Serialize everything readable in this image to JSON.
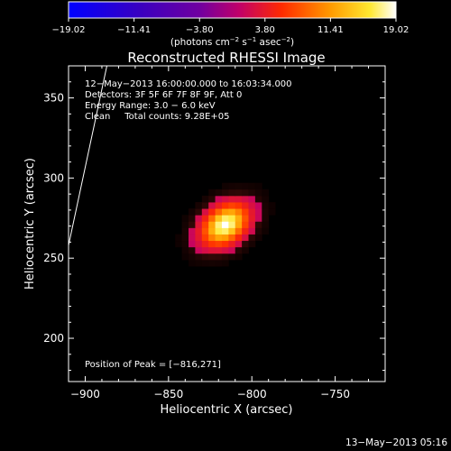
{
  "chart_data": {
    "type": "heatmap",
    "title": "Reconstructed RHESSI Image",
    "xlabel": "Heliocentric X (arcsec)",
    "ylabel": "Heliocentric Y (arcsec)",
    "xlim": [
      -910,
      -720
    ],
    "ylim": [
      173,
      370
    ],
    "x_ticks": [
      {
        "value": -900,
        "label": "−900"
      },
      {
        "value": -850,
        "label": "−850"
      },
      {
        "value": -800,
        "label": "−800"
      },
      {
        "value": -750,
        "label": "−750"
      }
    ],
    "y_ticks": [
      {
        "value": 200,
        "label": "200"
      },
      {
        "value": 250,
        "label": "250"
      },
      {
        "value": 300,
        "label": "300"
      },
      {
        "value": 350,
        "label": "350"
      }
    ],
    "colorbar": {
      "range": [
        -19.02,
        19.02
      ],
      "ticks": [
        {
          "value": -19.02,
          "label": "−19.02"
        },
        {
          "value": -11.41,
          "label": "−11.41"
        },
        {
          "value": -3.8,
          "label": "−3.80"
        },
        {
          "value": 3.8,
          "label": "3.80"
        },
        {
          "value": 11.41,
          "label": "11.41"
        },
        {
          "value": 19.02,
          "label": "19.02"
        }
      ],
      "label_prefix": "(photons cm",
      "label_exp1": "−2",
      "label_mid": " s",
      "label_exp2": "−1",
      "label_mid2": " asec",
      "label_exp3": "−2",
      "label_suffix": ")"
    },
    "annotations": [
      "12−May−2013 16:00:00.000 to 16:03:34.000",
      "Detectors: 3F 5F 6F 7F 8F 9F, Att 0",
      "Energy Range: 3.0 − 6.0 keV",
      "Clean     Total counts: 9.28E+05"
    ],
    "peak_label": "Position of Peak = [−816,271]",
    "peak": {
      "x": -816,
      "y": 271,
      "value": 19.02
    },
    "source": {
      "sigma_major": 10,
      "sigma_minor": 7,
      "angle_deg": 40
    },
    "limb_line": [
      [
        -910,
        258
      ],
      [
        -887,
        370
      ]
    ],
    "colors": {
      "background": "#000000",
      "line": "#ffffff"
    }
  },
  "footer": {
    "timestamp": "13−May−2013 05:16"
  }
}
